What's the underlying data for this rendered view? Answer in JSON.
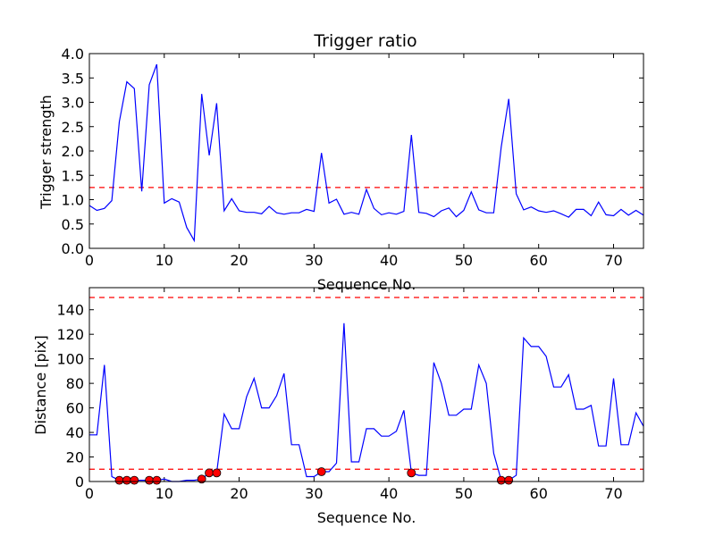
{
  "chart_data": [
    {
      "type": "line",
      "title": "Trigger ratio",
      "xlabel": "Sequence No.",
      "ylabel": "Trigger strength",
      "xlim": [
        0,
        74
      ],
      "ylim": [
        0,
        4.0
      ],
      "xticks": [
        0,
        10,
        20,
        30,
        40,
        50,
        60,
        70
      ],
      "yticks": [
        "0.0",
        "0.5",
        "1.0",
        "1.5",
        "2.0",
        "2.5",
        "3.0",
        "3.5",
        "4.0"
      ],
      "threshold": 1.25,
      "line_color": "#0000ff",
      "threshold_color": "#ff0000",
      "series": [
        {
          "x": [
            0,
            1,
            2,
            3,
            4,
            5,
            6,
            7,
            8,
            9,
            10,
            11,
            12,
            13,
            14,
            15,
            16,
            17,
            18,
            19,
            20,
            21,
            22,
            23,
            24,
            25,
            26,
            27,
            28,
            29,
            30,
            31,
            32,
            33,
            34,
            35,
            36,
            37,
            38,
            39,
            40,
            41,
            42,
            43,
            44,
            45,
            46,
            47,
            48,
            49,
            50,
            51,
            52,
            53,
            54,
            55,
            56,
            57,
            58,
            59,
            60,
            61,
            62,
            63,
            64,
            65,
            66,
            67,
            68,
            69,
            70,
            71,
            72,
            73,
            74
          ],
          "values": [
            0.88,
            0.78,
            0.82,
            0.98,
            2.6,
            3.42,
            3.28,
            1.17,
            3.36,
            3.78,
            0.93,
            1.02,
            0.95,
            0.43,
            0.16,
            3.17,
            1.91,
            2.98,
            0.77,
            1.02,
            0.77,
            0.74,
            0.74,
            0.71,
            0.86,
            0.73,
            0.7,
            0.73,
            0.73,
            0.8,
            0.76,
            1.96,
            0.93,
            1.01,
            0.7,
            0.74,
            0.7,
            1.21,
            0.82,
            0.69,
            0.73,
            0.7,
            0.76,
            2.33,
            0.74,
            0.72,
            0.65,
            0.77,
            0.83,
            0.65,
            0.78,
            1.16,
            0.79,
            0.73,
            0.73,
            2.08,
            3.07,
            1.12,
            0.79,
            0.85,
            0.77,
            0.74,
            0.77,
            0.71,
            0.64,
            0.8,
            0.8,
            0.67,
            0.95,
            0.69,
            0.67,
            0.8,
            0.68,
            0.78,
            0.68
          ]
        }
      ]
    },
    {
      "type": "line",
      "title": "",
      "xlabel": "Sequence No.",
      "ylabel": "Distance [pix]",
      "xlim": [
        0,
        74
      ],
      "ylim": [
        0,
        158
      ],
      "xticks": [
        0,
        10,
        20,
        30,
        40,
        50,
        60,
        70
      ],
      "yticks": [
        0,
        20,
        40,
        60,
        80,
        100,
        120,
        140
      ],
      "thresholds": [
        150,
        10
      ],
      "line_color": "#0000ff",
      "threshold_color": "#ff0000",
      "marker_color": "#ff0000",
      "series": [
        {
          "x": [
            0,
            1,
            2,
            3,
            4,
            5,
            6,
            7,
            8,
            9,
            10,
            11,
            12,
            13,
            14,
            15,
            16,
            17,
            18,
            19,
            20,
            21,
            22,
            23,
            24,
            25,
            26,
            27,
            28,
            29,
            30,
            31,
            32,
            33,
            34,
            35,
            36,
            37,
            38,
            39,
            40,
            41,
            42,
            43,
            44,
            45,
            46,
            47,
            48,
            49,
            50,
            51,
            52,
            53,
            54,
            55,
            56,
            57,
            58,
            59,
            60,
            61,
            62,
            63,
            64,
            65,
            66,
            67,
            68,
            69,
            70,
            71,
            72,
            73,
            74
          ],
          "values": [
            38,
            38,
            95,
            4,
            1,
            1,
            1,
            1,
            1,
            1,
            2,
            0,
            0,
            1,
            1,
            2,
            7,
            7,
            55,
            43,
            43,
            69,
            84,
            60,
            60,
            70,
            88,
            30,
            30,
            4,
            4,
            8,
            8,
            15,
            129,
            16,
            16,
            43,
            43,
            37,
            37,
            41,
            58,
            7,
            5,
            5,
            97,
            80,
            54,
            54,
            59,
            59,
            95,
            80,
            23,
            1,
            1,
            5,
            117,
            110,
            110,
            102,
            77,
            77,
            87,
            59,
            59,
            62,
            29,
            29,
            84,
            30,
            30,
            56,
            45
          ]
        },
        {
          "name": "",
          "markers": true,
          "x": [
            4,
            5,
            6,
            8,
            9,
            15,
            16,
            17,
            31,
            43,
            55,
            56
          ],
          "values": [
            1,
            1,
            1,
            1,
            1,
            2,
            7,
            7,
            8,
            7,
            1,
            1
          ]
        }
      ]
    }
  ]
}
